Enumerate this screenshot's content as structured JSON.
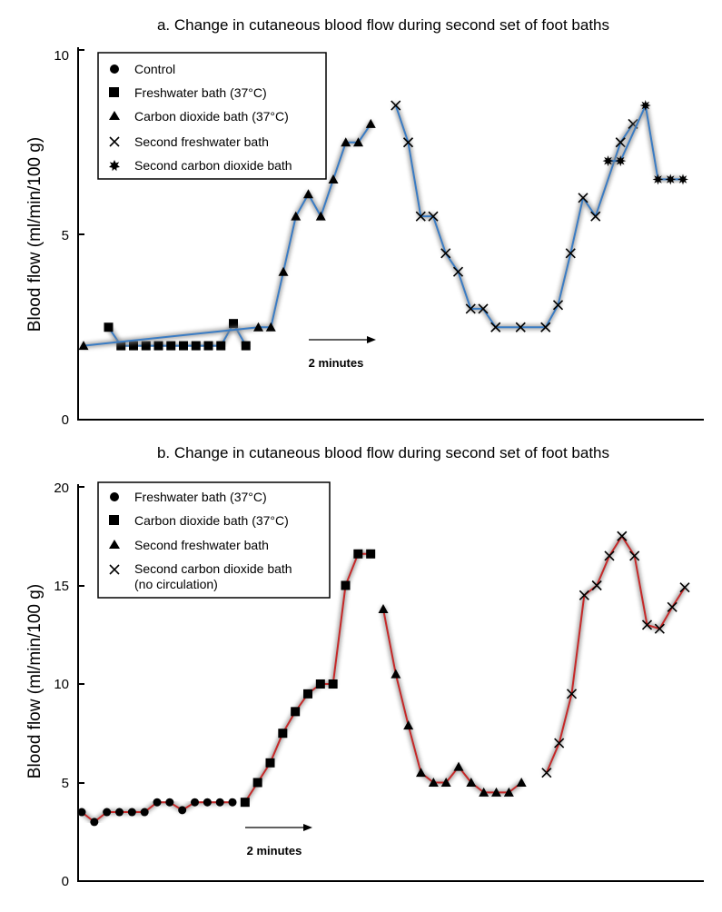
{
  "chart_data": [
    {
      "type": "line",
      "title": "a. Change in cutaneous blood flow during second set of foot baths",
      "ylabel": "Blood flow (ml/min/100 g)",
      "ylim": [
        0,
        10
      ],
      "yticks": [
        "0",
        "5",
        "10"
      ],
      "line_color": "#3a7cc4",
      "grid": false,
      "legend_position": "top-left",
      "legend": [
        "Control",
        "Freshwater bath (37°C)",
        "Carbon dioxide bath (37°C)",
        "Second freshwater bath",
        "Second carbon dioxide bath"
      ],
      "annotation": "2 minutes",
      "series": [
        {
          "name": "Control",
          "marker": "circle",
          "x": [],
          "y": []
        },
        {
          "name": "Freshwater bath (37°C)",
          "marker": "square",
          "x": [
            1.0,
            1.5,
            2.0,
            2.5,
            3.0,
            3.5,
            4.0,
            4.5,
            5.0,
            5.5,
            6.0,
            6.5
          ],
          "y": [
            2.5,
            2.0,
            2.0,
            2.0,
            2.0,
            2.0,
            2.0,
            2.0,
            2.0,
            2.0,
            2.6,
            2.0
          ]
        },
        {
          "name": "Carbon dioxide bath (37°C)",
          "marker": "triangle",
          "x": [
            0.0,
            7.0,
            7.5,
            8.0,
            8.5,
            9.0,
            9.5,
            10.0,
            10.5,
            11.0,
            11.5
          ],
          "y": [
            2.0,
            2.5,
            2.5,
            4.0,
            5.5,
            6.1,
            5.5,
            6.5,
            7.5,
            7.5,
            8.0
          ]
        },
        {
          "name": "Second freshwater bath",
          "marker": "x",
          "x": [
            12.5,
            13.0,
            13.5,
            14.0,
            14.5,
            15.0,
            15.5,
            16.0,
            16.5,
            17.5,
            18.5,
            19.0,
            19.5,
            20.0,
            20.5,
            21.5,
            22.0
          ],
          "y": [
            8.5,
            7.5,
            5.5,
            5.5,
            4.5,
            4.0,
            3.0,
            3.0,
            2.5,
            2.5,
            2.5,
            3.1,
            4.5,
            6.0,
            5.5,
            7.5,
            8.0
          ]
        },
        {
          "name": "Second carbon dioxide bath",
          "marker": "star",
          "x": [
            21.0,
            21.5,
            22.5,
            23.0,
            23.5,
            24.0
          ],
          "y": [
            7.0,
            7.0,
            8.5,
            6.5,
            6.5,
            6.5
          ]
        }
      ]
    },
    {
      "type": "line",
      "title": "b. Change in cutaneous blood flow during second set of foot baths",
      "ylabel": "Blood flow (ml/min/100 g)",
      "ylim": [
        0,
        20
      ],
      "yticks": [
        "0",
        "5",
        "10",
        "15",
        "20"
      ],
      "line_color": "#c62828",
      "grid": false,
      "legend_position": "top-left",
      "legend": [
        "Freshwater bath (37°C)",
        "Carbon dioxide bath (37°C)",
        "Second freshwater bath",
        "Second carbon dioxide bath\n(no circulation)"
      ],
      "annotation": "2 minutes",
      "series": [
        {
          "name": "Freshwater bath (37°C)",
          "marker": "circle",
          "x": [
            0.0,
            0.5,
            1.0,
            1.5,
            2.0,
            2.5,
            3.0,
            3.5,
            4.0,
            4.5,
            5.0,
            5.5,
            6.0
          ],
          "y": [
            3.5,
            3.0,
            3.5,
            3.5,
            3.5,
            3.5,
            4.0,
            4.0,
            3.6,
            4.0,
            4.0,
            4.0,
            4.0
          ]
        },
        {
          "name": "Carbon dioxide bath (37°C)",
          "marker": "square",
          "x": [
            6.5,
            7.0,
            7.5,
            8.0,
            8.5,
            9.0,
            9.5,
            10.0,
            10.5,
            11.0,
            11.5
          ],
          "y": [
            4.0,
            5.0,
            6.0,
            7.5,
            8.6,
            9.5,
            10.0,
            10.0,
            15.0,
            16.6,
            16.6
          ]
        },
        {
          "name": "Second freshwater bath",
          "marker": "triangle",
          "x": [
            12.0,
            12.5,
            13.0,
            13.5,
            14.0,
            14.5,
            15.0,
            15.5,
            16.0,
            16.5,
            17.0,
            17.5
          ],
          "y": [
            13.8,
            10.5,
            7.9,
            5.5,
            5.0,
            5.0,
            5.8,
            5.0,
            4.5,
            4.5,
            4.5,
            5.0
          ]
        },
        {
          "name": "Second carbon dioxide bath\n(no circulation)",
          "marker": "x",
          "x": [
            18.5,
            19.0,
            19.5,
            20.0,
            20.5,
            21.0,
            21.5,
            22.0,
            22.5,
            23.0,
            23.5,
            24.0
          ],
          "y": [
            5.5,
            7.0,
            9.5,
            14.5,
            15.0,
            16.5,
            17.5,
            16.5,
            13.0,
            12.8,
            13.9,
            14.9
          ]
        }
      ]
    }
  ]
}
